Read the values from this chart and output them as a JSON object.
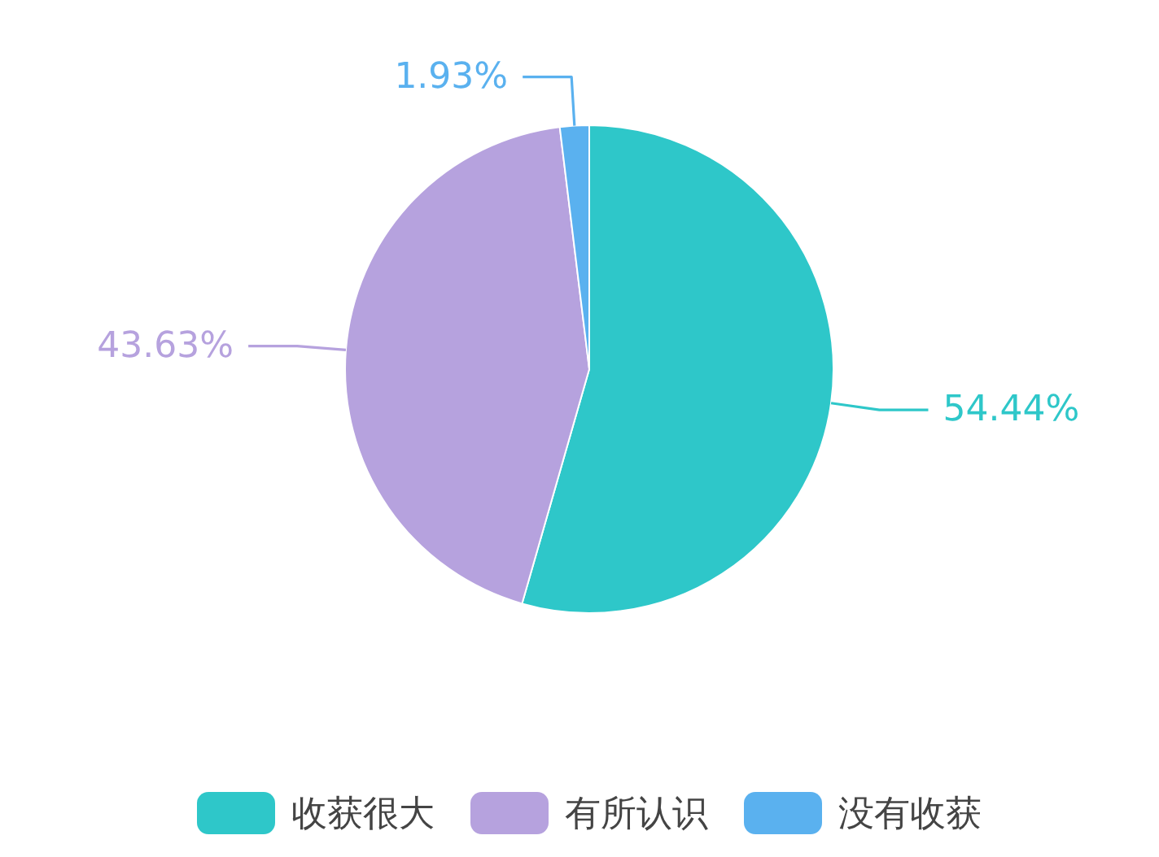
{
  "chart_data": {
    "type": "pie",
    "categories": [
      "收获很大",
      "有所认识",
      "没有收获"
    ],
    "values": [
      54.44,
      43.63,
      1.93
    ],
    "colors": [
      "#2ec7c9",
      "#b6a2de",
      "#5ab1ef"
    ],
    "value_labels": [
      "54.44%",
      "43.63%",
      "1.93%"
    ],
    "legend": "bottom"
  }
}
